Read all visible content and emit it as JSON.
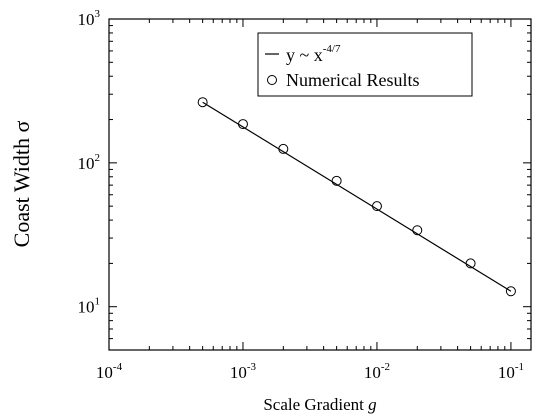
{
  "chart_data": {
    "type": "scatter",
    "xlabel_prefix": "Scale Gradient",
    "xlabel_var": "g",
    "ylabel_prefix": "Coast Width",
    "ylabel_var": "σ",
    "x_scale": "log",
    "y_scale": "log",
    "xlim": [
      0.0001,
      0.1412
    ],
    "ylim": [
      5,
      1000
    ],
    "grid": false,
    "legend_position": "top-right",
    "x_ticks": [
      {
        "base": "10",
        "exp": "-4"
      },
      {
        "base": "10",
        "exp": "-3"
      },
      {
        "base": "10",
        "exp": "-2"
      },
      {
        "base": "10",
        "exp": "-1"
      }
    ],
    "y_ticks": [
      {
        "base": "10",
        "exp": "1"
      },
      {
        "base": "10",
        "exp": "2"
      },
      {
        "base": "10",
        "exp": "3"
      }
    ],
    "series": [
      {
        "name": "Numerical Results",
        "kind": "markers",
        "marker": "open-circle",
        "x": [
          0.0005,
          0.001,
          0.002,
          0.005,
          0.01,
          0.02,
          0.05,
          0.1
        ],
        "y": [
          264,
          186,
          125,
          75,
          50,
          34,
          20,
          12.8
        ]
      },
      {
        "name_prefix": "y ~ x",
        "name_exp": "-4/7",
        "kind": "line",
        "x": [
          0.0005,
          0.1
        ],
        "y": [
          264,
          12.8
        ]
      }
    ]
  }
}
